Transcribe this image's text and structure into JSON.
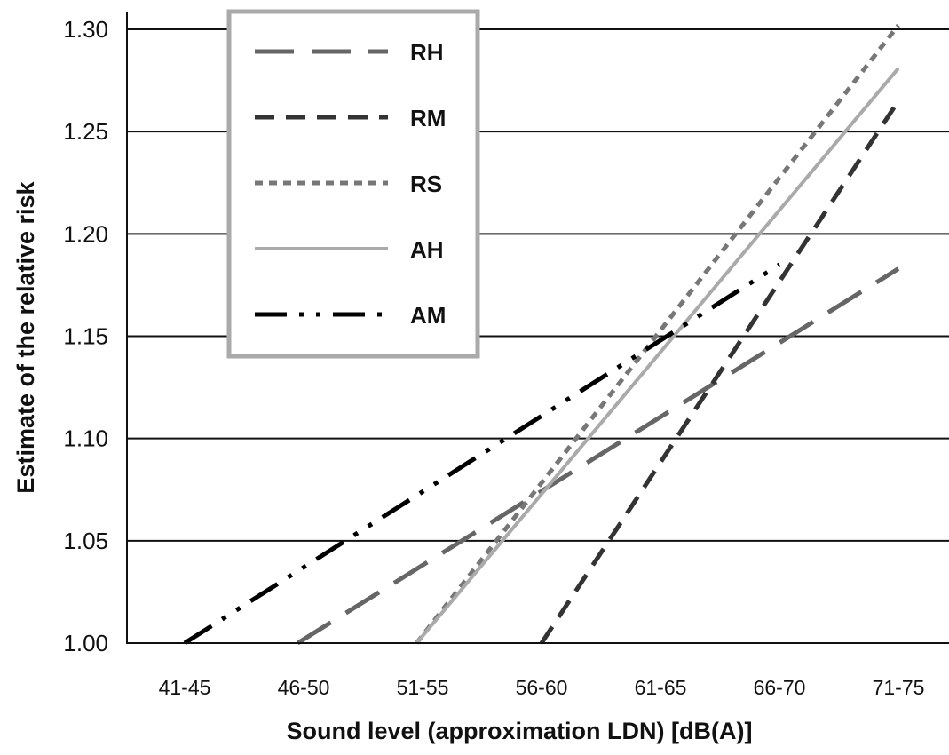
{
  "chart_data": {
    "type": "line",
    "title": "",
    "xlabel": "Sound level (approximation LDN) [dB(A)]",
    "ylabel": "Estimate of the relative risk",
    "categories": [
      "41-45",
      "46-50",
      "51-55",
      "56-60",
      "61-65",
      "66-70",
      "71-75"
    ],
    "yticks": [
      "1.00",
      "1.05",
      "1.10",
      "1.15",
      "1.20",
      "1.25",
      "1.30"
    ],
    "ylim": [
      1.0,
      1.3
    ],
    "grid": true,
    "legend_placement": "top-left",
    "series": [
      {
        "name": "RH",
        "color": "#666666",
        "dash": "long-dash",
        "points": [
          [
            1.95,
            1.0
          ],
          [
            7.0,
            1.183
          ]
        ]
      },
      {
        "name": "RM",
        "color": "#333333",
        "dash": "dash",
        "points": [
          [
            4.0,
            1.0
          ],
          [
            7.0,
            1.265
          ]
        ]
      },
      {
        "name": "RS",
        "color": "#777777",
        "dash": "dot",
        "points": [
          [
            2.95,
            1.0
          ],
          [
            7.0,
            1.302
          ]
        ]
      },
      {
        "name": "AH",
        "color": "#aaaaaa",
        "dash": "solid",
        "points": [
          [
            2.95,
            1.0
          ],
          [
            7.0,
            1.281
          ]
        ]
      },
      {
        "name": "AM",
        "color": "#000000",
        "dash": "dash-dot-dot",
        "points": [
          [
            1.0,
            1.0
          ],
          [
            6.0,
            1.185
          ]
        ]
      }
    ]
  }
}
